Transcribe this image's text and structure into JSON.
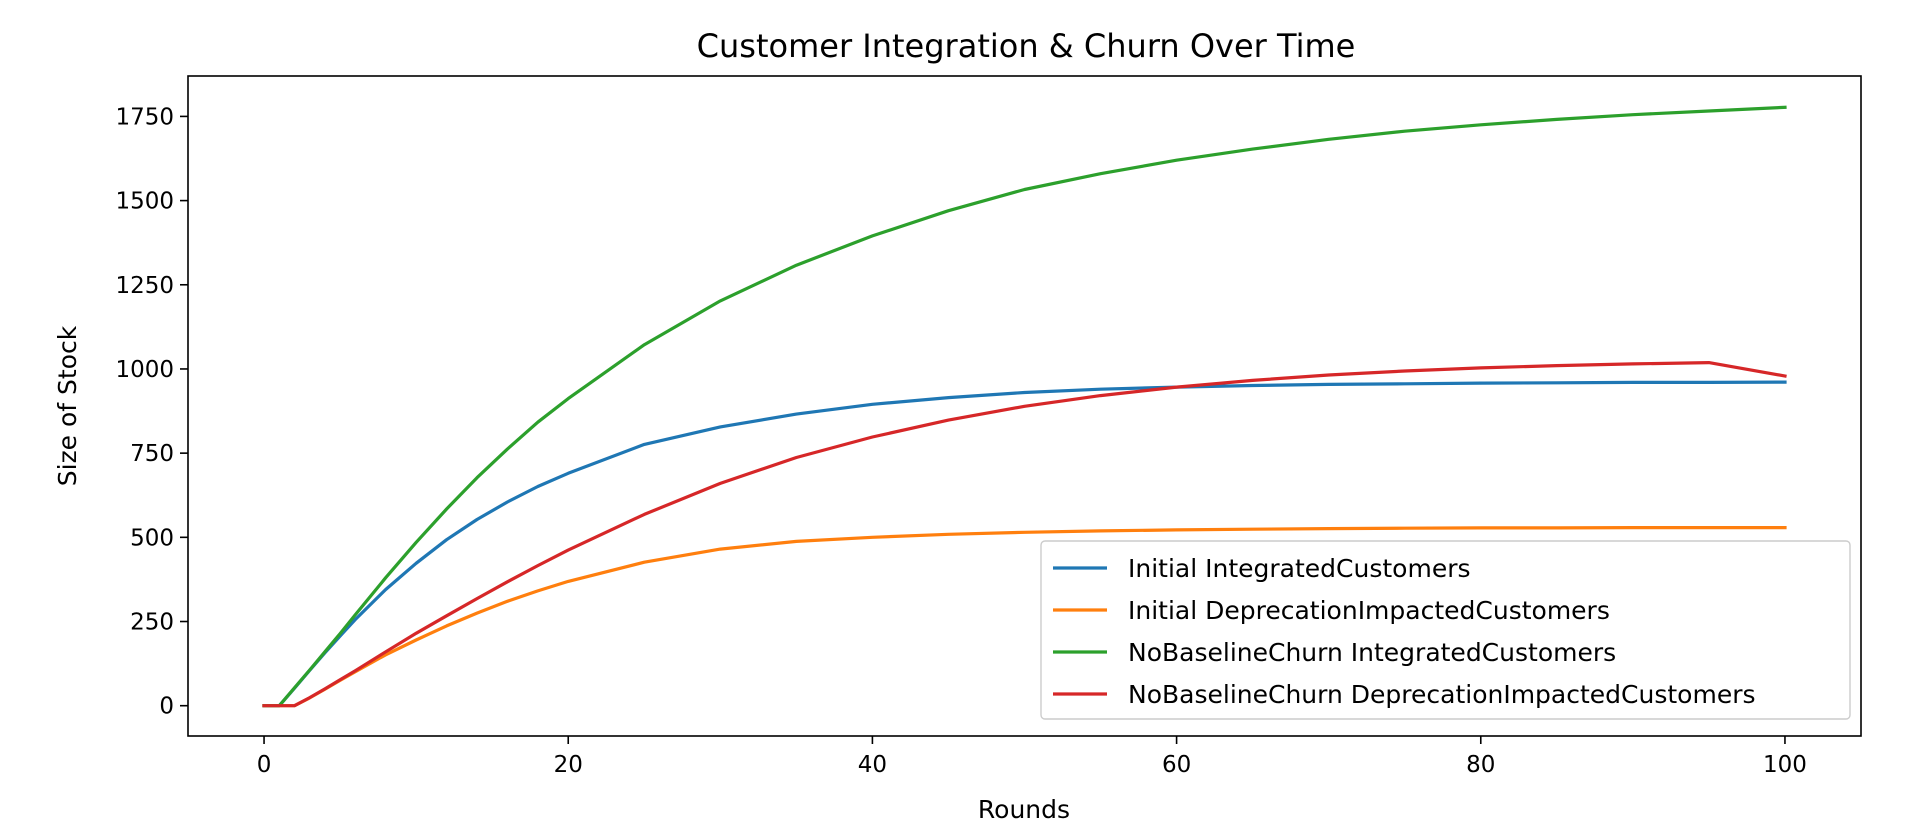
{
  "chart_data": {
    "type": "line",
    "title": "Customer Integration & Churn Over Time",
    "xlabel": "Rounds",
    "ylabel": "Size of Stock",
    "xlim": [
      -5,
      105
    ],
    "ylim": [
      -90,
      1870
    ],
    "xticks": [
      0,
      20,
      40,
      60,
      80,
      100
    ],
    "yticks": [
      0,
      250,
      500,
      750,
      1000,
      1250,
      1500,
      1750
    ],
    "grid": false,
    "legend_position": "lower right",
    "x": [
      0,
      1,
      2,
      3,
      4,
      5,
      6,
      8,
      10,
      12,
      14,
      16,
      18,
      20,
      25,
      30,
      35,
      40,
      45,
      50,
      55,
      60,
      65,
      70,
      75,
      80,
      85,
      90,
      95,
      100
    ],
    "series": [
      {
        "name": "Initial IntegratedCustomers",
        "color": "#1f77b4",
        "values": [
          0,
          0,
          52,
          105,
          157,
          207,
          256,
          345,
          423,
          493,
          553,
          605,
          651,
          690,
          776,
          828,
          866,
          895,
          915,
          930,
          940,
          946,
          951,
          954,
          956,
          958,
          959,
          960,
          960,
          961
        ]
      },
      {
        "name": "Initial DeprecationImpactedCustomers",
        "color": "#ff7f0e",
        "values": [
          0,
          0,
          0,
          23,
          49,
          75,
          101,
          151,
          195,
          237,
          275,
          310,
          341,
          369,
          426,
          465,
          488,
          500,
          509,
          515,
          519,
          522,
          524,
          526,
          527,
          528,
          528,
          529,
          529,
          529
        ]
      },
      {
        "name": "NoBaselineChurn IntegratedCustomers",
        "color": "#2ca02c",
        "values": [
          0,
          0,
          53,
          106,
          160,
          214,
          270,
          380,
          485,
          584,
          677,
          762,
          842,
          912,
          1072,
          1202,
          1308,
          1395,
          1470,
          1533,
          1580,
          1620,
          1653,
          1682,
          1706,
          1725,
          1741,
          1755,
          1766,
          1777
        ]
      },
      {
        "name": "NoBaselineChurn DeprecationImpactedCustomers",
        "color": "#d62728",
        "values": [
          0,
          0,
          0,
          24,
          50,
          77,
          104,
          160,
          215,
          267,
          318,
          368,
          416,
          462,
          568,
          660,
          737,
          798,
          848,
          889,
          921,
          946,
          966,
          982,
          994,
          1003,
          1010,
          1015,
          1019,
          979
        ]
      }
    ]
  }
}
